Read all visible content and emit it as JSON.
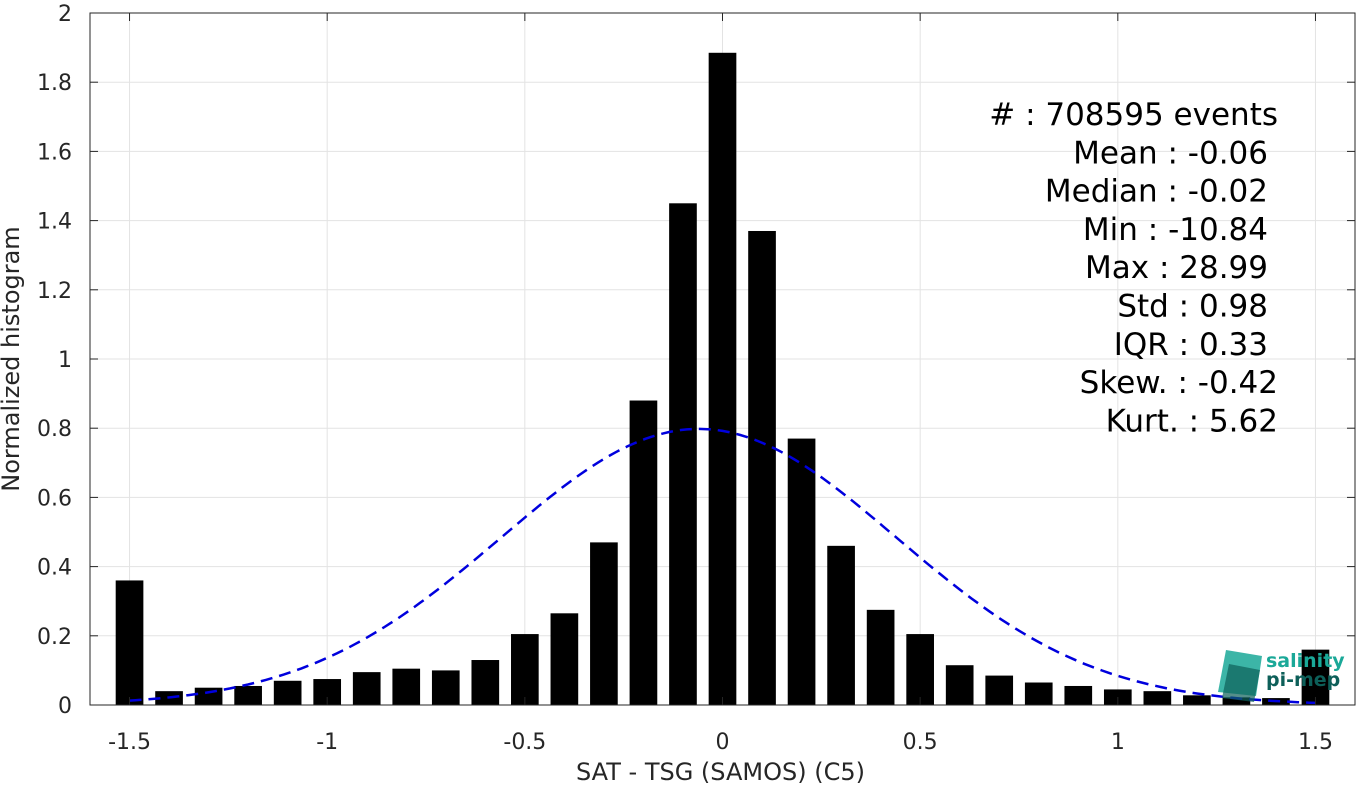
{
  "chart_data": {
    "type": "bar",
    "xlabel": "SAT - TSG (SAMOS) (C5)",
    "ylabel": "Normalized histogram",
    "xlim": [
      -1.6,
      1.6
    ],
    "ylim": [
      0,
      2
    ],
    "xticks": [
      -1.5,
      -1,
      -0.5,
      0,
      0.5,
      1,
      1.5
    ],
    "xtick_labels": [
      "-1.5",
      "-1",
      "-0.5",
      "0",
      "0.5",
      "1",
      "1.5"
    ],
    "yticks": [
      0,
      0.2,
      0.4,
      0.6,
      0.8,
      1,
      1.2,
      1.4,
      1.6,
      1.8,
      2
    ],
    "ytick_labels": [
      "0",
      "0.2",
      "0.4",
      "0.6",
      "0.8",
      "1",
      "1.2",
      "1.4",
      "1.6",
      "1.8",
      "2"
    ],
    "grid": true,
    "bar_color": "#000000",
    "bar_width": 0.07,
    "bins": [
      -1.5,
      -1.4,
      -1.3,
      -1.2,
      -1.1,
      -1.0,
      -0.9,
      -0.8,
      -0.7,
      -0.6,
      -0.5,
      -0.4,
      -0.3,
      -0.2,
      -0.1,
      0.0,
      0.1,
      0.2,
      0.3,
      0.4,
      0.5,
      0.6,
      0.7,
      0.8,
      0.9,
      1.0,
      1.1,
      1.2,
      1.3,
      1.4,
      1.5
    ],
    "values": [
      0.36,
      0.04,
      0.05,
      0.055,
      0.07,
      0.075,
      0.095,
      0.105,
      0.1,
      0.13,
      0.205,
      0.265,
      0.47,
      0.88,
      1.45,
      1.885,
      1.37,
      0.77,
      0.46,
      0.275,
      0.205,
      0.115,
      0.085,
      0.065,
      0.055,
      0.045,
      0.04,
      0.028,
      0.022,
      0.02,
      0.16
    ],
    "fit_curve": {
      "type": "gaussian",
      "mean": -0.06,
      "std": 0.5,
      "x_range": [
        -1.5,
        1.5
      ],
      "color": "#0000dd",
      "style": "dashed"
    },
    "annotations": [
      "#  : 708595 events",
      "Mean : -0.06",
      "Median : -0.02",
      "Min : -10.84",
      "Max : 28.99",
      "Std : 0.98",
      "IQR : 0.33",
      "Skew. : -0.42",
      "Kurt. : 5.62"
    ],
    "logo": {
      "line1": "salinity",
      "line2": "pi-mep",
      "colors": [
        "#1aa898",
        "#0d5f59"
      ]
    }
  }
}
